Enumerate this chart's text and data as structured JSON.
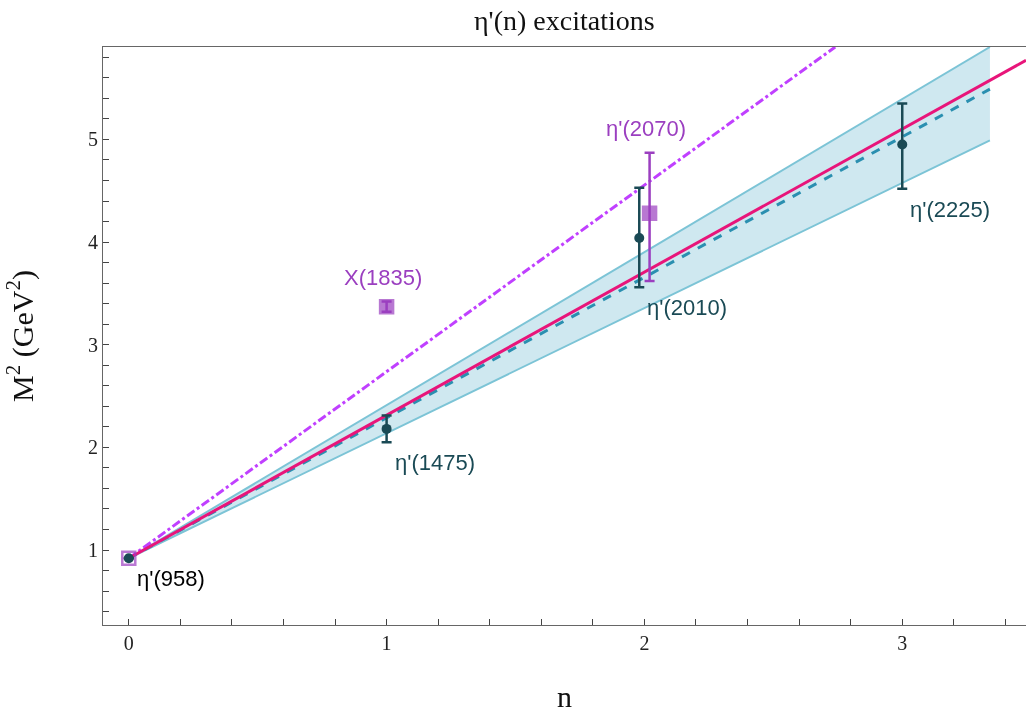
{
  "chart_data": {
    "type": "scatter",
    "title": "η'(n) excitations",
    "xlabel": "n",
    "ylabel": "M$^{2}$ (GeV$^{2}$)",
    "xlim": [
      -0.1,
      3.48
    ],
    "xticks": [
      0,
      1,
      2,
      3,
      {
        "value": 0.2,
        "label": null
      },
      {
        "value": 0.4,
        "label": null
      },
      {
        "value": 0.6,
        "label": null
      },
      {
        "value": 0.8,
        "label": null
      },
      {
        "value": 1.2,
        "label": null
      },
      {
        "value": 1.4,
        "label": null
      },
      {
        "value": 1.6,
        "label": null
      },
      {
        "value": 1.8,
        "label": null
      },
      {
        "value": 2.2,
        "label": null
      },
      {
        "value": 2.4,
        "label": null
      },
      {
        "value": 2.6,
        "label": null
      },
      {
        "value": 2.8,
        "label": null
      },
      {
        "value": 3.2,
        "label": null
      },
      {
        "value": 3.4,
        "label": null
      }
    ],
    "ylim": [
      0.27,
      5.9
    ],
    "yticks": [
      1,
      2,
      3,
      4,
      5,
      {
        "value": 0.4,
        "label": null
      },
      {
        "value": 0.6,
        "label": null
      },
      {
        "value": 0.8,
        "label": null
      },
      {
        "value": 1.2,
        "label": null
      },
      {
        "value": 1.4,
        "label": null
      },
      {
        "value": 1.6,
        "label": null
      },
      {
        "value": 1.8,
        "label": null
      },
      {
        "value": 2.2,
        "label": null
      },
      {
        "value": 2.4,
        "label": null
      },
      {
        "value": 2.6,
        "label": null
      },
      {
        "value": 2.8,
        "label": null
      },
      {
        "value": 3.2,
        "label": null
      },
      {
        "value": 3.4,
        "label": null
      },
      {
        "value": 3.6,
        "label": null
      },
      {
        "value": 3.8,
        "label": null
      },
      {
        "value": 4.2,
        "label": null
      },
      {
        "value": 4.4,
        "label": null
      },
      {
        "value": 4.6,
        "label": null
      },
      {
        "value": 4.8,
        "label": null
      },
      {
        "value": 5.2,
        "label": null
      },
      {
        "value": 5.4,
        "label": null
      },
      {
        "value": 5.6,
        "label": null
      },
      {
        "value": 5.8,
        "label": null
      }
    ],
    "grid": false,
    "series": [
      {
        "type": "line",
        "color": "#2a8fb0",
        "line_style": "dashed",
        "marker": "none",
        "x": [
          0,
          3.34
        ],
        "values": [
          0.92,
          5.49
        ],
        "lower": [
          0.92,
          4.99
        ],
        "upper": [
          0.92,
          5.9
        ]
      },
      {
        "type": "line",
        "color": "#c040ff",
        "line_style": "dashdot",
        "marker": "none",
        "x": [
          0,
          2.74
        ],
        "values": [
          0.92,
          5.9
        ]
      },
      {
        "type": "line",
        "color": "#e8157a",
        "line_style": "solid",
        "marker": "none",
        "x": [
          0,
          3.48
        ],
        "values": [
          0.92,
          5.77
        ]
      },
      {
        "color": "#9b3fc0",
        "marker": "square",
        "x": [
          0,
          1,
          2.02
        ],
        "values": [
          0.92,
          3.37,
          4.28
        ],
        "errors": [
          null,
          [
            3.32,
            3.42
          ],
          [
            3.62,
            4.87
          ]
        ]
      },
      {
        "color": "#1a4a55",
        "marker": "circle",
        "x": [
          0,
          1,
          1.98,
          3
        ],
        "values": [
          0.92,
          2.18,
          4.04,
          4.95
        ],
        "errors": [
          null,
          [
            2.05,
            2.31
          ],
          [
            3.56,
            4.53
          ],
          [
            4.52,
            5.35
          ]
        ]
      }
    ],
    "annotations": [
      {
        "text": "η'(958)",
        "x": 0,
        "y": 0.92
      },
      {
        "text": "η'(1475)",
        "x": 1,
        "y": 2.05
      },
      {
        "text": "X(1835)",
        "x": 1,
        "y": 3.42
      },
      {
        "text": "η'(2070)",
        "x": 2.02,
        "y": 4.87
      },
      {
        "text": "η'(2010)",
        "x": 1.98,
        "y": 3.56
      },
      {
        "text": "η'(2225)",
        "x": 3,
        "y": 4.52
      }
    ]
  }
}
